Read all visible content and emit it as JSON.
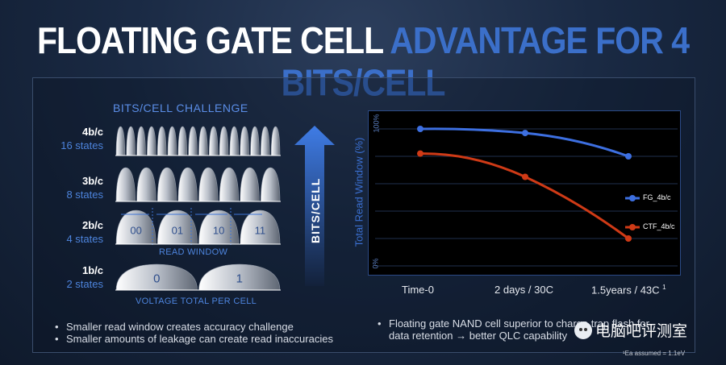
{
  "title": {
    "part1": "FLOATING GATE CELL ",
    "part2": "ADVANTAGE FOR 4 BITS/CELL"
  },
  "left": {
    "heading": "BITS/CELL CHALLENGE",
    "rows": [
      {
        "bits": "4b/c",
        "states": "16 states"
      },
      {
        "bits": "3b/c",
        "states": "8 states"
      },
      {
        "bits": "2b/c",
        "states": "4 states",
        "cells": [
          "00",
          "01",
          "10",
          "11"
        ]
      },
      {
        "bits": "1b/c",
        "states": "2 states",
        "cells": [
          "0",
          "1"
        ]
      }
    ],
    "read_window_label": "READ WINDOW",
    "voltage_label": "VOLTAGE TOTAL PER CELL",
    "arrow_label": "BITS/CELL",
    "bullets": [
      "Smaller read window creates accuracy challenge",
      "Smaller amounts of leakage can create read inaccuracies"
    ]
  },
  "chart_data": {
    "type": "line",
    "ylabel": "Total Read Window (%)",
    "ytick_top": "100%",
    "ytick_bottom": "0%",
    "categories": [
      "Time-0",
      "2 days / 30C",
      "1.5years / 43C"
    ],
    "category_superscript": "1",
    "ylim": [
      0,
      100
    ],
    "series": [
      {
        "name": "FG_4b/c",
        "values": [
          100,
          97,
          80
        ],
        "color": "#3d6fe0"
      },
      {
        "name": "CTF_4b/c",
        "values": [
          82,
          65,
          20
        ],
        "color": "#cf3a16"
      }
    ],
    "grid": true,
    "legend_position": "right"
  },
  "right": {
    "bullets": [
      "Floating gate NAND cell superior to charge trap flash for data retention → better QLC capability"
    ],
    "footnote": "¹Ea assumed = 1.1eV"
  },
  "watermark": "电脑吧评测室"
}
